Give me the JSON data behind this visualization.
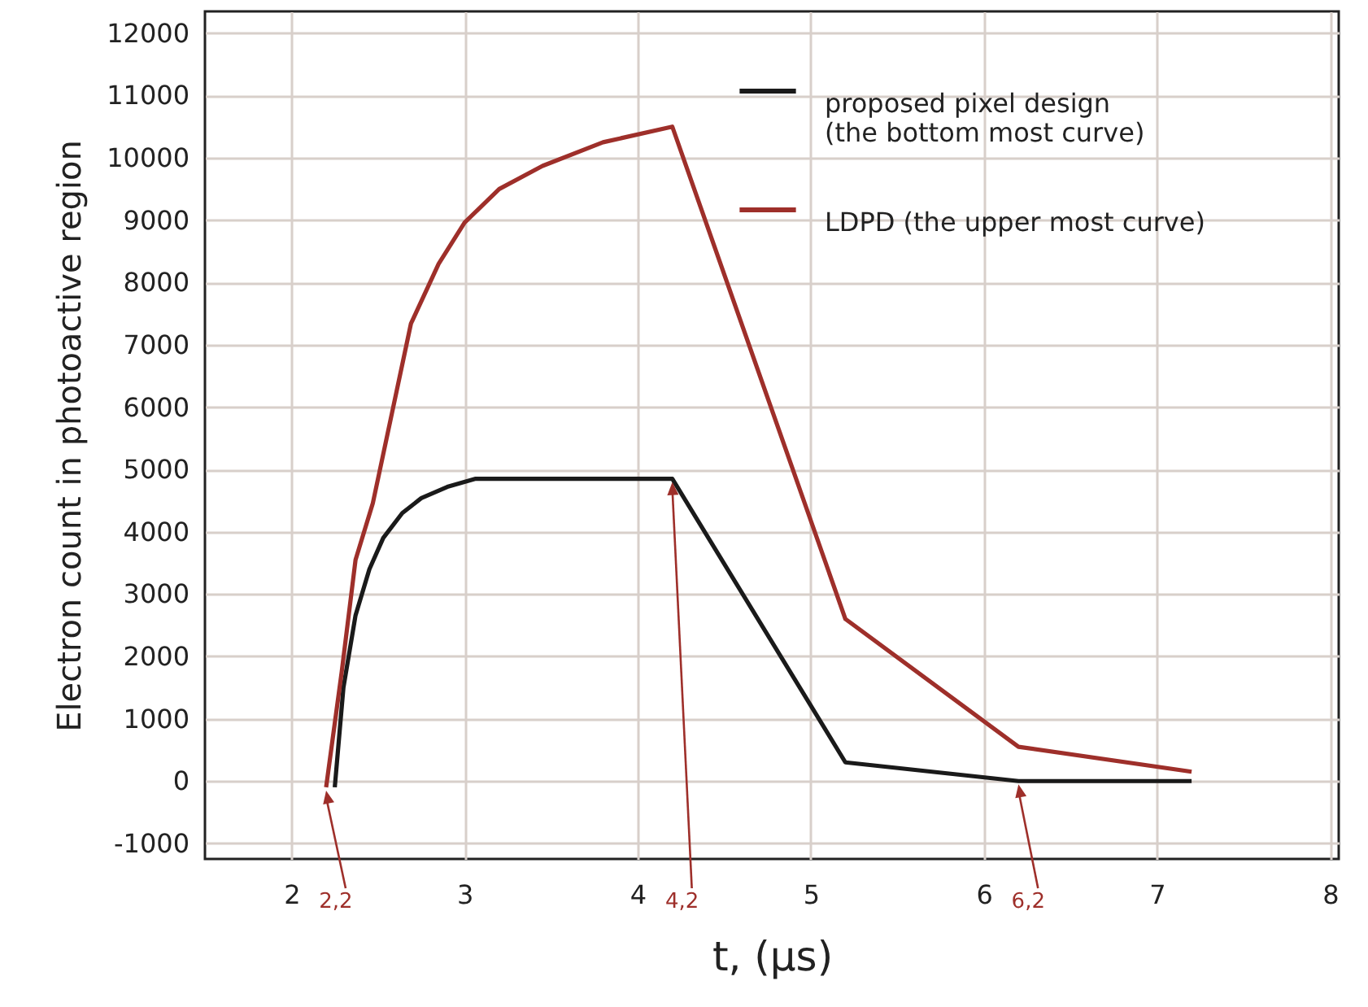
{
  "chart_data": {
    "type": "line",
    "xlabel": "t, (μs)",
    "ylabel": "Electron count in photoactive region",
    "xlim": [
      1.5,
      8.05
    ],
    "xticks": [
      2,
      3,
      4,
      5,
      6,
      7,
      8
    ],
    "ylim": [
      -1250,
      12350
    ],
    "yticks": [
      -1000,
      0,
      1000,
      2000,
      3000,
      4000,
      5000,
      6000,
      7000,
      8000,
      9000,
      10000,
      11000,
      12000
    ],
    "grid": true,
    "legend": "top right",
    "line_style": "solid",
    "marker": "none",
    "series": [
      {
        "name": "proposed pixel design\n(the bottom most curve)",
        "color": "#1a1a1a",
        "x": [
          2.25,
          2.3,
          2.37,
          2.45,
          2.53,
          2.64,
          2.75,
          2.9,
          3.06,
          4.2,
          5.2,
          6.2,
          7.2
        ],
        "values": [
          -100,
          1500,
          2660,
          3400,
          3900,
          4300,
          4540,
          4720,
          4850,
          4850,
          300,
          0,
          0
        ]
      },
      {
        "name": "LDPD (the upper most curve)",
        "color": "#9e2f2a",
        "x": [
          2.2,
          2.29,
          2.37,
          2.47,
          2.58,
          2.69,
          2.85,
          3.0,
          3.2,
          3.45,
          3.8,
          4.2,
          5.2,
          6.2,
          7.2
        ],
        "values": [
          -100,
          1750,
          3550,
          4460,
          5900,
          7340,
          8300,
          8960,
          9500,
          9870,
          10250,
          10500,
          2600,
          550,
          150
        ]
      }
    ],
    "annotations": [
      {
        "text": "2,2",
        "x": 2.2,
        "y": -100
      },
      {
        "text": "4,2",
        "x": 4.2,
        "y": 4850
      },
      {
        "text": "6,2",
        "x": 6.2,
        "y": 0
      }
    ]
  }
}
